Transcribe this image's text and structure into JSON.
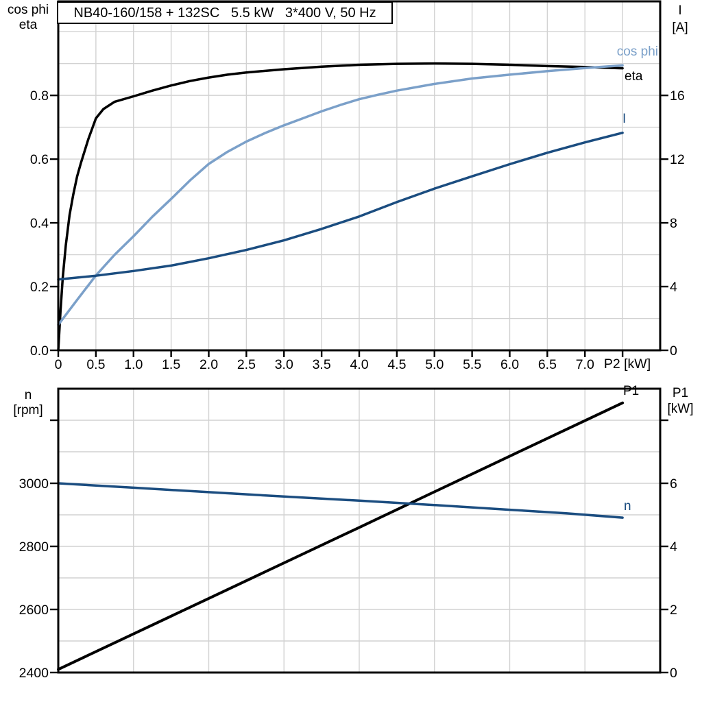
{
  "top_panel": {
    "title": "NB40-160/158 + 132SC   5.5 kW   3*400 V, 50 Hz",
    "header_left": {
      "line1": "cos phi",
      "line2": "eta"
    },
    "header_right": {
      "line1": "I",
      "line2": "[A]"
    },
    "x_axis_label": "P2 [kW]",
    "curve_labels": {
      "cos_phi": "cos phi",
      "eta": "eta",
      "current": "I"
    }
  },
  "bottom_panel": {
    "header_left": {
      "line1": "n",
      "line2": "[rpm]"
    },
    "header_right": {
      "line1": "P1",
      "line2": "[kW]"
    },
    "curve_labels": {
      "p1": "P1",
      "n": "n"
    }
  },
  "colors": {
    "cos_phi": "#7ba0c9",
    "eta": "#000000",
    "current": "#1b4d80",
    "speed": "#1b4d80",
    "p1": "#000000",
    "grid": "#d2d2d2",
    "axis": "#000000"
  },
  "chart_data": [
    {
      "type": "line",
      "title": "NB40-160/158 + 132SC   5.5 kW   3*400 V, 50 Hz",
      "xlabel": "P2 [kW]",
      "xlim": [
        0,
        8
      ],
      "x_grid_step": 0.5,
      "x_tick_values": [
        0,
        0.5,
        1,
        1.5,
        2,
        2.5,
        3,
        3.5,
        4,
        4.5,
        5,
        5.5,
        6,
        6.5,
        7
      ],
      "x_tick_labels": [
        "0",
        "0.5",
        "1.0",
        "1.5",
        "2.0",
        "2.5",
        "3.0",
        "3.5",
        "4.0",
        "4.5",
        "5.0",
        "5.5",
        "6.0",
        "6.5",
        "7.0"
      ],
      "x_tick_marks": [
        0,
        0.5,
        1,
        1.5,
        2,
        2.5,
        3,
        3.5,
        4,
        4.5,
        5,
        5.5,
        6,
        6.5,
        7,
        7.5
      ],
      "left_axis": {
        "label": "cos phi / eta",
        "lim": [
          0,
          1.095
        ],
        "grid_step": 0.1,
        "tick_values": [
          0,
          0.2,
          0.4,
          0.6,
          0.8
        ],
        "tick_labels": [
          "0.0",
          "0.2",
          "0.4",
          "0.6",
          "0.8"
        ]
      },
      "right_axis": {
        "label": "I [A]",
        "lim": [
          0,
          21.9
        ],
        "grid_step": 2,
        "tick_values": [
          0,
          4,
          8,
          12,
          16
        ],
        "tick_labels": [
          "0",
          "4",
          "8",
          "12",
          "16"
        ]
      },
      "legend_position": "right-end-of-curves",
      "grid": true,
      "series": [
        {
          "name": "eta",
          "axis": "left",
          "color_key": "eta",
          "width": 3.5,
          "points": [
            [
              0,
              0
            ],
            [
              0.03,
              0.125
            ],
            [
              0.06,
              0.23
            ],
            [
              0.1,
              0.33
            ],
            [
              0.15,
              0.425
            ],
            [
              0.2,
              0.49
            ],
            [
              0.25,
              0.545
            ],
            [
              0.3,
              0.587
            ],
            [
              0.4,
              0.663
            ],
            [
              0.5,
              0.728
            ],
            [
              0.6,
              0.757
            ],
            [
              0.75,
              0.78
            ],
            [
              1,
              0.797
            ],
            [
              1.25,
              0.815
            ],
            [
              1.5,
              0.831
            ],
            [
              1.75,
              0.845
            ],
            [
              2,
              0.856
            ],
            [
              2.25,
              0.865
            ],
            [
              2.5,
              0.872
            ],
            [
              3,
              0.882
            ],
            [
              3.5,
              0.89
            ],
            [
              4,
              0.896
            ],
            [
              4.5,
              0.899
            ],
            [
              5,
              0.9
            ],
            [
              5.5,
              0.899
            ],
            [
              6,
              0.896
            ],
            [
              6.5,
              0.892
            ],
            [
              7,
              0.889
            ],
            [
              7.5,
              0.885
            ]
          ]
        },
        {
          "name": "cos phi",
          "axis": "left",
          "color_key": "cos_phi",
          "width": 3.5,
          "points": [
            [
              0,
              0.08
            ],
            [
              0.25,
              0.158
            ],
            [
              0.5,
              0.235
            ],
            [
              0.75,
              0.3
            ],
            [
              1,
              0.358
            ],
            [
              1.25,
              0.419
            ],
            [
              1.5,
              0.475
            ],
            [
              1.75,
              0.533
            ],
            [
              2,
              0.585
            ],
            [
              2.25,
              0.623
            ],
            [
              2.5,
              0.655
            ],
            [
              2.75,
              0.682
            ],
            [
              3,
              0.706
            ],
            [
              3.25,
              0.728
            ],
            [
              3.5,
              0.75
            ],
            [
              3.75,
              0.77
            ],
            [
              4,
              0.788
            ],
            [
              4.25,
              0.802
            ],
            [
              4.5,
              0.815
            ],
            [
              5,
              0.836
            ],
            [
              5.5,
              0.853
            ],
            [
              6,
              0.865
            ],
            [
              6.5,
              0.876
            ],
            [
              7,
              0.886
            ],
            [
              7.5,
              0.894
            ]
          ]
        },
        {
          "name": "I",
          "axis": "right",
          "color_key": "current",
          "width": 3.5,
          "points": [
            [
              0,
              4.45
            ],
            [
              0.5,
              4.68
            ],
            [
              1,
              4.98
            ],
            [
              1.5,
              5.32
            ],
            [
              2,
              5.78
            ],
            [
              2.5,
              6.3
            ],
            [
              3,
              6.9
            ],
            [
              3.5,
              7.62
            ],
            [
              4,
              8.4
            ],
            [
              4.5,
              9.3
            ],
            [
              5,
              10.15
            ],
            [
              5.5,
              10.92
            ],
            [
              6,
              11.68
            ],
            [
              6.5,
              12.4
            ],
            [
              7,
              13.05
            ],
            [
              7.5,
              13.65
            ]
          ]
        }
      ]
    },
    {
      "type": "line",
      "title": "",
      "xlabel": "",
      "xlim": [
        0,
        8
      ],
      "x_grid_step": 1,
      "x_tick_values": [],
      "x_tick_labels": [],
      "x_tick_marks": [],
      "left_axis": {
        "label": "n [rpm]",
        "lim": [
          2400,
          3300
        ],
        "grid_step": 100,
        "tick_values": [
          2400,
          2600,
          2800,
          3000,
          3200
        ],
        "tick_labels": [
          "2400",
          "2600",
          "2800",
          "3000",
          ""
        ]
      },
      "right_axis": {
        "label": "P1 [kW]",
        "lim": [
          0,
          9
        ],
        "grid_step": 1,
        "tick_values": [
          0,
          2,
          4,
          6,
          8
        ],
        "tick_labels": [
          "0",
          "2",
          "4",
          "6",
          ""
        ]
      },
      "legend_position": "right-end-of-curves",
      "grid": true,
      "series": [
        {
          "name": "P1",
          "axis": "right",
          "color_key": "p1",
          "width": 4,
          "points": [
            [
              0,
              0.1
            ],
            [
              2,
              2.35
            ],
            [
              4,
              4.6
            ],
            [
              6,
              6.86
            ],
            [
              7.5,
              8.55
            ]
          ]
        },
        {
          "name": "n",
          "axis": "left",
          "color_key": "speed",
          "width": 3.5,
          "points": [
            [
              0,
              3000
            ],
            [
              1,
              2986
            ],
            [
              2,
              2972
            ],
            [
              3,
              2958
            ],
            [
              4,
              2945
            ],
            [
              5,
              2931
            ],
            [
              6,
              2916
            ],
            [
              6.75,
              2905
            ],
            [
              7.5,
              2891
            ]
          ]
        }
      ]
    }
  ]
}
